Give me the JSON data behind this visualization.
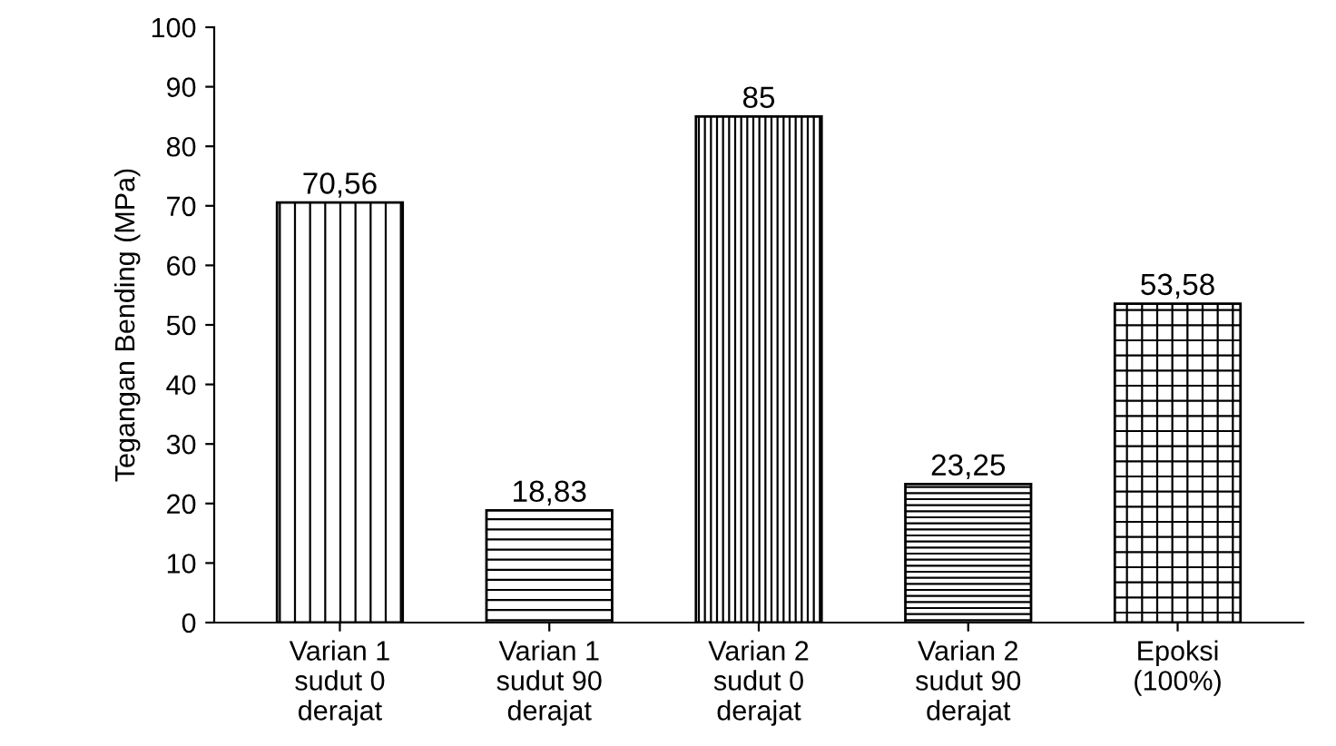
{
  "chart_data": {
    "type": "bar",
    "ylabel": "Tegangan Bending (MPa)",
    "categories": [
      "Varian 1\nsudut 0\nderajat",
      "Varian 1\nsudut 90\nderajat",
      "Varian 2\nsudut 0\nderajat",
      "Varian 2\nsudut 90\nderajat",
      "Epoksi\n(100%)"
    ],
    "values": [
      70.56,
      18.83,
      85,
      23.25,
      53.58
    ],
    "value_labels": [
      "70,56",
      "18,83",
      "85",
      "23,25",
      "53,58"
    ],
    "colors": [
      "#000000",
      "#000000",
      "#000000",
      "#000000",
      "#000000"
    ],
    "ylim": [
      0,
      100
    ],
    "yticks": [
      0,
      10,
      20,
      30,
      40,
      50,
      60,
      70,
      80,
      90,
      100
    ],
    "grid": false,
    "legend": false
  }
}
